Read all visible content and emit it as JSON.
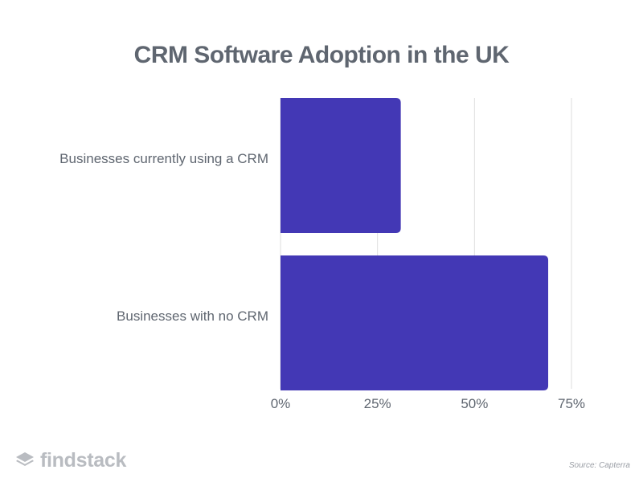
{
  "chart_data": {
    "type": "bar",
    "orientation": "horizontal",
    "title": "CRM Software Adoption in the UK",
    "categories": [
      "Businesses currently using a CRM",
      "Businesses with no CRM"
    ],
    "values": [
      31,
      69
    ],
    "unit": "%",
    "xlim": [
      0,
      75
    ],
    "xticks": [
      "0%",
      "25%",
      "50%",
      "75%"
    ],
    "xtick_values": [
      0,
      25,
      50,
      75
    ],
    "grid": true,
    "bar_color": "#4338b5",
    "grid_color": "#dedede",
    "text_color": "#5f6670"
  },
  "footer": {
    "logo_text": "findstack",
    "logo_icon": "layers-icon",
    "source": "Source: Capterra"
  }
}
